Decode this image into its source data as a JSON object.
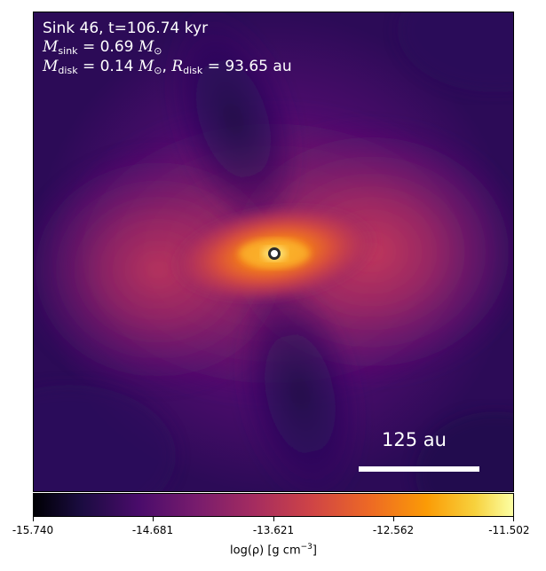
{
  "annotation": {
    "line1": "Sink 46, t=106.74 kyr",
    "msink_symbol": "M",
    "msink_sub": "sink",
    "msink_value": "= 0.69",
    "msun_symbol": "M",
    "msun_sub": "⊙",
    "mdisk_symbol": "M",
    "mdisk_sub": "disk",
    "mdisk_value": "= 0.14",
    "rdisk_symbol": "R",
    "rdisk_sub": "disk",
    "rdisk_value": "= 93.65 au"
  },
  "scalebar": {
    "label": "125 au"
  },
  "colorbar": {
    "label_main": "log(ρ) [g cm",
    "label_exp": "−3",
    "label_end": "]",
    "ticks": [
      "-15.740",
      "-14.681",
      "-13.621",
      "-12.562",
      "-11.502"
    ],
    "min": -15.74,
    "max": -11.502,
    "colormap": "inferno"
  },
  "colors": {
    "background_density": "#2a0b5c",
    "disk_core": "#fcb42a",
    "sink_marker_edge": "#2b2b2b"
  }
}
